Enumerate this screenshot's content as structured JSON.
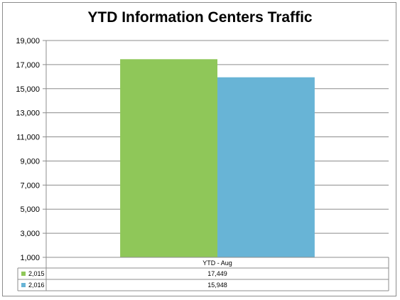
{
  "chart_data": {
    "type": "bar",
    "title": "YTD Information Centers Traffic",
    "categories": [
      "YTD - Aug"
    ],
    "series": [
      {
        "name": "2,015",
        "values": [
          17449
        ],
        "value_label": "17,449",
        "color": "#8fc759"
      },
      {
        "name": "2,016",
        "values": [
          15948
        ],
        "value_label": "15,948",
        "color": "#68b4d6"
      }
    ],
    "ylim": [
      1000,
      19000
    ],
    "yticks": [
      "1,000",
      "3,000",
      "5,000",
      "7,000",
      "9,000",
      "11,000",
      "13,000",
      "15,000",
      "17,000",
      "19,000"
    ],
    "grid": true,
    "legend": "data-table"
  }
}
